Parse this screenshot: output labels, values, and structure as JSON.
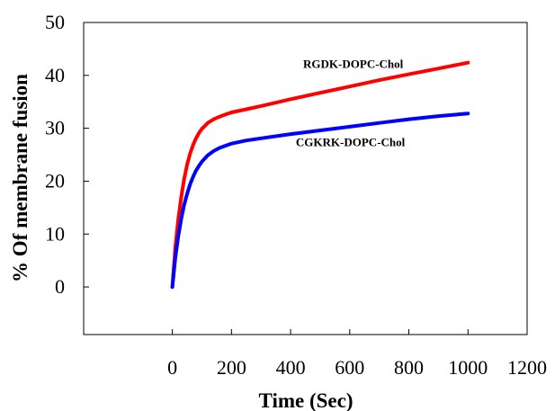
{
  "chart_data": {
    "type": "line",
    "title": "",
    "xlabel": "Time (Sec)",
    "ylabel": "% Of membrane fusion",
    "xlim": [
      -300,
      1200
    ],
    "ylim": [
      -9,
      50
    ],
    "x_ticks": [
      0,
      200,
      400,
      600,
      800,
      1000,
      1200
    ],
    "x_tick_labels": [
      "0",
      "200",
      "400",
      "600",
      "800",
      "1000",
      "1200"
    ],
    "y_ticks": [
      0,
      10,
      20,
      30,
      40,
      50
    ],
    "y_tick_labels": [
      "0",
      "10",
      "20",
      "30",
      "40",
      "50"
    ],
    "grid": false,
    "series": [
      {
        "name": "RGDK-DOPC-Chol",
        "color": "#ff0000",
        "label_at": [
          1000,
          42.4
        ],
        "x": [
          0,
          10,
          20,
          30,
          40,
          50,
          60,
          70,
          80,
          90,
          100,
          120,
          140,
          160,
          180,
          200,
          250,
          300,
          400,
          500,
          600,
          700,
          800,
          900,
          1000
        ],
        "y": [
          0,
          7.5,
          12.8,
          17.0,
          20.4,
          23.1,
          25.2,
          26.8,
          28.1,
          29.1,
          29.9,
          31.0,
          31.7,
          32.2,
          32.6,
          33.0,
          33.6,
          34.2,
          35.5,
          36.7,
          37.9,
          39.1,
          40.2,
          41.3,
          42.4
        ]
      },
      {
        "name": "CGKRK-DOPC-Chol",
        "color": "#0000ff",
        "label_at": [
          1000,
          27.5
        ],
        "x": [
          0,
          10,
          20,
          30,
          40,
          50,
          60,
          70,
          80,
          90,
          100,
          120,
          140,
          160,
          180,
          200,
          250,
          300,
          400,
          500,
          600,
          700,
          800,
          900,
          1000
        ],
        "y": [
          0,
          5.5,
          9.6,
          12.9,
          15.5,
          17.6,
          19.4,
          20.8,
          22.0,
          22.9,
          23.7,
          24.9,
          25.7,
          26.3,
          26.7,
          27.1,
          27.7,
          28.1,
          28.9,
          29.6,
          30.3,
          31.0,
          31.7,
          32.3,
          32.8
        ]
      }
    ]
  }
}
